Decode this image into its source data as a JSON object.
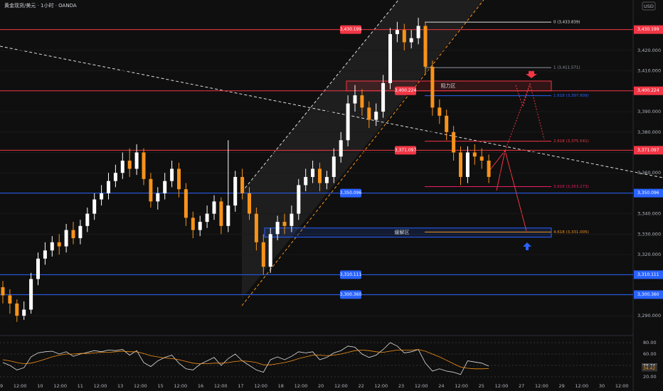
{
  "chart_data": {
    "type": "candlestick",
    "title": "黄金现货/美元 · 1小时 · OANDA",
    "currency": "USD",
    "up_color": "#ffffff",
    "down_color": "#f7931a",
    "ylim": [
      3281,
      3444.7
    ],
    "yticks": [
      {
        "value": 3290,
        "label": "3,290.000"
      },
      {
        "value": 3300,
        "label": "3,300.000"
      },
      {
        "value": 3310,
        "label": "3,310.000"
      },
      {
        "value": 3320,
        "label": "3,320.000"
      },
      {
        "value": 3330,
        "label": "3,330.000"
      },
      {
        "value": 3340,
        "label": "3,340.000"
      },
      {
        "value": 3350,
        "label": "3,350.000"
      },
      {
        "value": 3360,
        "label": "3,360.000"
      },
      {
        "value": 3370,
        "label": "3,370.000"
      },
      {
        "value": 3380,
        "label": "3,380.000"
      },
      {
        "value": 3390,
        "label": "3,390.000"
      },
      {
        "value": 3410,
        "label": "3,410.000"
      },
      {
        "value": 3420,
        "label": "3,420.000"
      }
    ],
    "x_labels": [
      "9",
      "12:00",
      "10",
      "12:00",
      "11",
      "12:00",
      "13",
      "12:00",
      "15",
      "12:00",
      "16",
      "12:00",
      "17",
      "12:00",
      "18",
      "12:00",
      "20",
      "12:00",
      "22",
      "12:00",
      "23",
      "12:00",
      "24",
      "12:00",
      "25",
      "12:00",
      "27",
      "12:00",
      "29",
      "12:00",
      "30",
      "12:00"
    ],
    "open": [
      3304,
      3300,
      3296,
      3290,
      3293,
      3308,
      3318,
      3322,
      3326,
      3324,
      3332,
      3328,
      3334,
      3340,
      3347,
      3350,
      3356,
      3360,
      3366,
      3362,
      3370,
      3357,
      3346,
      3350,
      3356,
      3362,
      3352,
      3338,
      3332,
      3336,
      3340,
      3346,
      3334,
      3344,
      3358,
      3350,
      3340,
      3326,
      3314,
      3330,
      3336,
      3334,
      3340,
      3354,
      3358,
      3362,
      3355,
      3358,
      3368,
      3376,
      3394,
      3398,
      3392,
      3386,
      3390,
      3404,
      3428,
      3430,
      3424,
      3426,
      3432,
      3412,
      3392,
      3388,
      3380,
      3370,
      3358,
      3370,
      3368,
      3366
    ],
    "high": [
      3307,
      3303,
      3298,
      3297,
      3311,
      3321,
      3326,
      3329,
      3330,
      3335,
      3336,
      3337,
      3343,
      3350,
      3354,
      3360,
      3364,
      3370,
      3372,
      3374,
      3372,
      3360,
      3353,
      3360,
      3366,
      3365,
      3355,
      3341,
      3339,
      3344,
      3349,
      3348,
      3376,
      3361,
      3362,
      3353,
      3343,
      3330,
      3333,
      3339,
      3340,
      3344,
      3357,
      3362,
      3366,
      3365,
      3361,
      3372,
      3380,
      3398,
      3403,
      3401,
      3395,
      3394,
      3408,
      3431,
      3434,
      3433,
      3430,
      3436,
      3434,
      3415,
      3396,
      3391,
      3383,
      3373,
      3373,
      3374,
      3372,
      3369
    ],
    "low": [
      3296,
      3291,
      3287,
      3288,
      3291,
      3305,
      3315,
      3319,
      3320,
      3321,
      3325,
      3325,
      3331,
      3337,
      3344,
      3347,
      3353,
      3357,
      3358,
      3359,
      3354,
      3343,
      3342,
      3347,
      3353,
      3348,
      3334,
      3328,
      3329,
      3333,
      3337,
      3330,
      3331,
      3341,
      3347,
      3337,
      3322,
      3310,
      3311,
      3327,
      3330,
      3331,
      3337,
      3351,
      3355,
      3351,
      3352,
      3355,
      3365,
      3373,
      3390,
      3388,
      3382,
      3383,
      3387,
      3401,
      3424,
      3420,
      3421,
      3423,
      3408,
      3388,
      3384,
      3376,
      3366,
      3354,
      3355,
      3364,
      3362,
      3355
    ],
    "close": [
      3300,
      3296,
      3290,
      3293,
      3308,
      3318,
      3322,
      3326,
      3324,
      3332,
      3328,
      3334,
      3340,
      3347,
      3350,
      3356,
      3360,
      3366,
      3362,
      3370,
      3357,
      3346,
      3350,
      3356,
      3362,
      3352,
      3338,
      3332,
      3336,
      3340,
      3346,
      3334,
      3344,
      3358,
      3350,
      3340,
      3326,
      3314,
      3330,
      3336,
      3334,
      3340,
      3354,
      3358,
      3362,
      3355,
      3358,
      3368,
      3376,
      3394,
      3398,
      3392,
      3386,
      3390,
      3404,
      3428,
      3430,
      3424,
      3426,
      3432,
      3412,
      3392,
      3388,
      3380,
      3370,
      3358,
      3370,
      3368,
      3366,
      3358
    ],
    "levels": [
      {
        "value": 3430.199,
        "label": "3,430.199",
        "color": "#f23645"
      },
      {
        "value": 3400.224,
        "label": "3,400.224",
        "color": "#f23645"
      },
      {
        "value": 3371.097,
        "label": "3,371.097",
        "color": "#f23645"
      },
      {
        "value": 3350.096,
        "label": "3,350.096",
        "color": "#2962ff"
      },
      {
        "value": 3310.111,
        "label": "3,310.111",
        "color": "#2962ff"
      },
      {
        "value": 3300.36,
        "label": "3,300.360",
        "color": "#2962ff"
      }
    ],
    "fib": [
      {
        "value": 3433.839,
        "label": "0 (3,433.839)",
        "color": "#e0e0e0"
      },
      {
        "value": 3411.571,
        "label": "1 (3,411.571)",
        "color": "#9598a1"
      },
      {
        "value": 3397.809,
        "label": "1.618 (3,397.809)",
        "color": "#2962ff"
      },
      {
        "value": 3375.541,
        "label": "2.618 (3,375.541)",
        "color": "#f23645"
      },
      {
        "value": 3353.273,
        "label": "3.618 (3,353.273)",
        "color": "#e91e63"
      },
      {
        "value": 3331.005,
        "label": "4.618 (3,331.005)",
        "color": "#f7931a"
      }
    ],
    "zones": [
      {
        "label": "阻力区",
        "range": [
          3400.224,
          3405
        ],
        "color": "#f23645"
      },
      {
        "label": "缓解区",
        "range": [
          3328.5,
          3333
        ],
        "color": "#2962ff"
      }
    ],
    "rsi": {
      "ylim": [
        10,
        90
      ],
      "yticks": [
        {
          "value": 20,
          "label": "20.00"
        },
        {
          "value": 40,
          "label": "40.00"
        },
        {
          "value": 60,
          "label": "60.00"
        },
        {
          "value": 80,
          "label": "80.00"
        }
      ],
      "values": [
        45,
        40,
        32,
        36,
        55,
        62,
        64,
        65,
        60,
        64,
        56,
        60,
        63,
        66,
        64,
        67,
        66,
        68,
        58,
        66,
        45,
        38,
        48,
        54,
        58,
        44,
        34,
        32,
        42,
        48,
        54,
        40,
        52,
        60,
        48,
        40,
        32,
        28,
        50,
        55,
        50,
        56,
        64,
        62,
        64,
        50,
        54,
        62,
        66,
        74,
        72,
        60,
        54,
        58,
        68,
        80,
        74,
        62,
        64,
        68,
        44,
        30,
        34,
        30,
        28,
        24,
        48,
        46,
        44,
        38.74
      ],
      "ma": [
        50,
        48,
        45,
        43,
        44,
        47,
        51,
        55,
        58,
        60,
        60,
        61,
        61,
        62,
        63,
        63,
        64,
        65,
        64,
        64,
        61,
        57,
        55,
        53,
        52,
        50,
        47,
        44,
        43,
        43,
        44,
        44,
        45,
        47,
        48,
        47,
        45,
        41,
        41,
        43,
        45,
        48,
        52,
        55,
        58,
        58,
        57,
        58,
        60,
        63,
        66,
        67,
        66,
        64,
        63,
        65,
        67,
        67,
        67,
        68,
        65,
        60,
        55,
        49,
        43,
        37,
        35,
        34,
        34,
        34.42
      ],
      "color": "#e0e0e0",
      "ma_color": "#f7931a"
    }
  }
}
